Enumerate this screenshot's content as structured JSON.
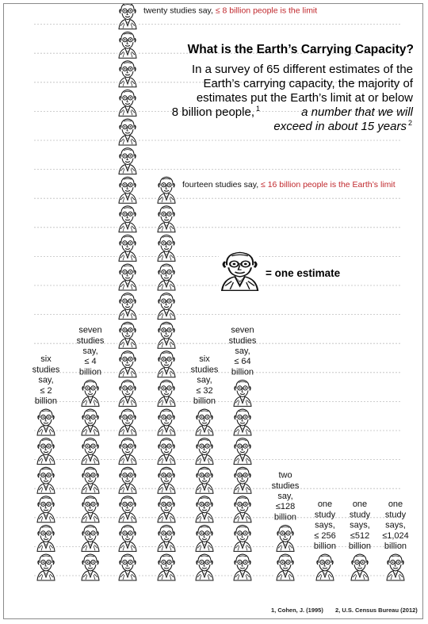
{
  "chart_data": {
    "type": "bar",
    "title": "What is the Earth’s Carrying Capacity?",
    "subtitle_lines": [
      "In a survey of 65 different estimates of the",
      "Earth’s carrying capacity, the majority of",
      "estimates put the Earth’s limit at or below",
      "8 billion people,",
      "a number that we will",
      "exceed in about 15 years"
    ],
    "legend_label": "= one estimate",
    "footnote_1": "1, Cohen, J. (1995)",
    "footnote_2": "2, U.S. Census Bureau (2012)",
    "categories": [
      "≤ 2 billion",
      "≤ 4 billion",
      "≤ 8 billion",
      "≤ 16 billion",
      "≤ 32 billion",
      "≤ 64 billion",
      "≤128 billion",
      "≤ 256 billion",
      "≤512 billion",
      "≤1,024 billion"
    ],
    "values": [
      6,
      7,
      20,
      14,
      6,
      7,
      2,
      1,
      1,
      1
    ],
    "annotations": [
      {
        "col": 0,
        "lines": [
          "six",
          "studies",
          "say,",
          "≤ 2",
          "billion"
        ],
        "red_from": 3
      },
      {
        "col": 1,
        "lines": [
          "seven",
          "studies",
          "say,",
          "≤ 4",
          "billion"
        ],
        "red_from": 3
      },
      {
        "col": 4,
        "lines": [
          "six",
          "studies",
          "say,",
          "≤ 32",
          "billion"
        ],
        "red_from": 3
      },
      {
        "col": 5,
        "lines": [
          "seven",
          "studies",
          "say,",
          "≤ 64",
          "billion"
        ],
        "red_from": 3
      },
      {
        "col": 6,
        "lines": [
          "two",
          "studies",
          "say,",
          "≤128",
          "billion"
        ],
        "red_from": 3
      },
      {
        "col": 7,
        "lines": [
          "one",
          "study",
          "says,",
          "≤ 256",
          "billion"
        ],
        "red_from": 3
      },
      {
        "col": 8,
        "lines": [
          "one",
          "study",
          "says,",
          "≤512",
          "billion"
        ],
        "red_from": 3
      },
      {
        "col": 9,
        "lines": [
          "one",
          "study",
          "says,",
          "≤1,024",
          "billion"
        ],
        "red_from": 3
      }
    ],
    "top_notes": [
      {
        "col": 2,
        "black": "twenty studies say,",
        "red": "≤ 8 billion people is the limit"
      },
      {
        "col": 3,
        "black": "fourteen studies say,",
        "red": "≤ 16 billion people is the Earth’s limit"
      }
    ],
    "colors": {
      "accent": "#c0282d",
      "line": "#bdbdbd",
      "ink": "#111111"
    }
  }
}
